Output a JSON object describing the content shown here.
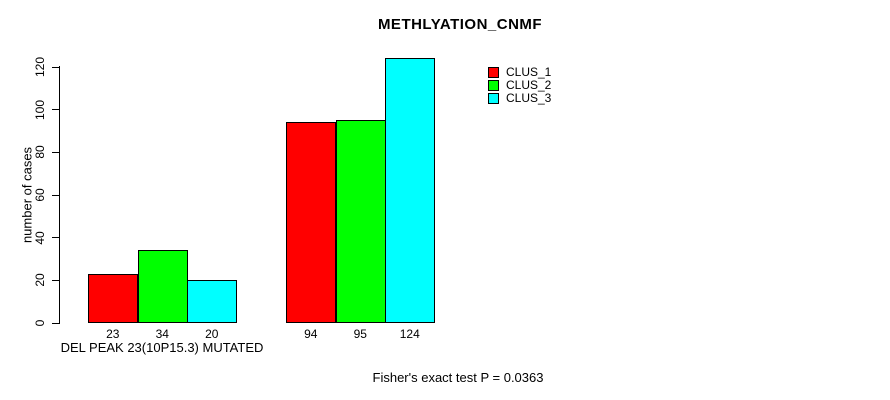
{
  "chart_data": {
    "type": "bar",
    "title": "METHLYATION_CNMF",
    "ylabel": "number of cases",
    "xlabel": "",
    "ylim": [
      0,
      120
    ],
    "yticks": [
      0,
      20,
      40,
      60,
      80,
      100,
      120
    ],
    "grid": false,
    "legend_position": "top-right",
    "categories": [
      "DEL PEAK 23(10P15.3) MUTATED",
      ""
    ],
    "series": [
      {
        "name": "CLUS_1",
        "color": "#ff0000",
        "values": [
          23,
          94
        ]
      },
      {
        "name": "CLUS_2",
        "color": "#00ff00",
        "values": [
          34,
          95
        ]
      },
      {
        "name": "CLUS_3",
        "color": "#00ffff",
        "values": [
          20,
          124
        ]
      }
    ],
    "bar_value_labels": [
      [
        23,
        34,
        20
      ],
      [
        94,
        95,
        124
      ]
    ],
    "annotation": "Fisher's exact test P = 0.0363"
  }
}
